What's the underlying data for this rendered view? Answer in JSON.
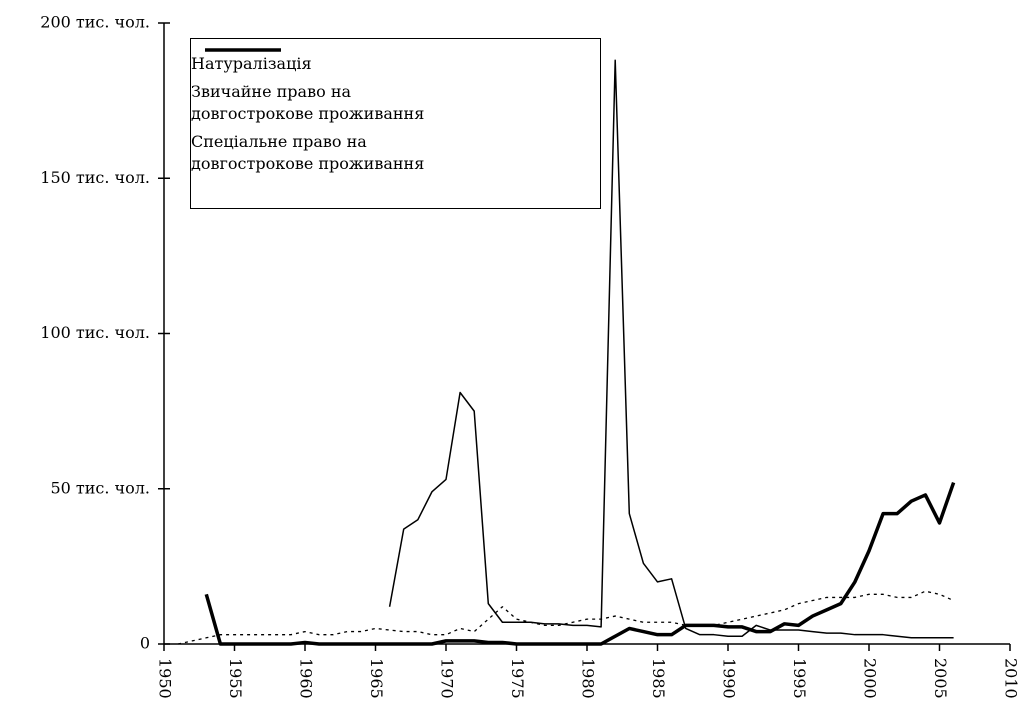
{
  "chart_data": {
    "type": "line",
    "x": [
      1951,
      1952,
      1953,
      1954,
      1955,
      1956,
      1957,
      1958,
      1959,
      1960,
      1961,
      1962,
      1963,
      1964,
      1965,
      1966,
      1967,
      1968,
      1969,
      1970,
      1971,
      1972,
      1973,
      1974,
      1975,
      1976,
      1977,
      1978,
      1979,
      1980,
      1981,
      1982,
      1983,
      1984,
      1985,
      1986,
      1987,
      1988,
      1989,
      1990,
      1991,
      1992,
      1993,
      1994,
      1995,
      1996,
      1997,
      1998,
      1999,
      2000,
      2001,
      2002,
      2003,
      2004,
      2005,
      2006
    ],
    "series": [
      {
        "name": "Натуралізація",
        "color": "#000000",
        "line_style": "dotted",
        "line_width": 1.3,
        "values": [
          0,
          1,
          2,
          3,
          3,
          3,
          3,
          3,
          3,
          4,
          3,
          3,
          4,
          4,
          5,
          4.5,
          4,
          4,
          3,
          3,
          5,
          4,
          8,
          12,
          8,
          7,
          6,
          6,
          7,
          8,
          8,
          9,
          8,
          7,
          7,
          7,
          6,
          6,
          6,
          7,
          8,
          9,
          10,
          11,
          13,
          14,
          15,
          15,
          15,
          16,
          16,
          15,
          15,
          17,
          16,
          14
        ]
      },
      {
        "name": "Звичайне право на довгострокове проживання",
        "color": "#000000",
        "line_style": "solid",
        "line_width": 3.5,
        "values": [
          null,
          null,
          16,
          0,
          0,
          0,
          0,
          0,
          0,
          0.5,
          0,
          0,
          0,
          0,
          0,
          0,
          0,
          0,
          0,
          1,
          1,
          1,
          0.5,
          0.5,
          0,
          0,
          0,
          0,
          0,
          0,
          0,
          2.5,
          5,
          4,
          3,
          3,
          6,
          6,
          6,
          5.5,
          5.5,
          4,
          4,
          6.5,
          6,
          9,
          11,
          13,
          20,
          30,
          42,
          42,
          46,
          48,
          39,
          52
        ]
      },
      {
        "name": "Спеціальне право на довгострокове проживання",
        "color": "#000000",
        "line_style": "solid",
        "line_width": 1.5,
        "values": [
          null,
          null,
          null,
          null,
          null,
          null,
          null,
          null,
          null,
          null,
          null,
          null,
          null,
          null,
          null,
          12,
          37,
          40,
          49,
          53,
          81,
          75,
          13,
          7,
          7,
          7,
          6.5,
          6.5,
          6,
          6,
          5.5,
          188,
          42,
          26,
          20,
          21,
          5,
          3,
          3,
          2.5,
          2.5,
          6,
          4.5,
          4.5,
          4.5,
          4,
          3.5,
          3.5,
          3,
          3,
          3,
          2.5,
          2,
          2,
          2,
          2
        ]
      }
    ],
    "xlim": [
      1950,
      2010
    ],
    "xticks": [
      1950,
      1955,
      1960,
      1965,
      1970,
      1975,
      1980,
      1985,
      1990,
      1995,
      2000,
      2005,
      2010
    ],
    "ylim": [
      0,
      200
    ],
    "yticks": [
      0,
      {
        "value": 50,
        "label": "50 тис. чол."
      },
      {
        "value": 100,
        "label": "100 тис. чол."
      },
      {
        "value": 150,
        "label": "150 тис. чол."
      },
      {
        "value": 200,
        "label": "200 тис. чол."
      }
    ],
    "legend": "upper left"
  }
}
